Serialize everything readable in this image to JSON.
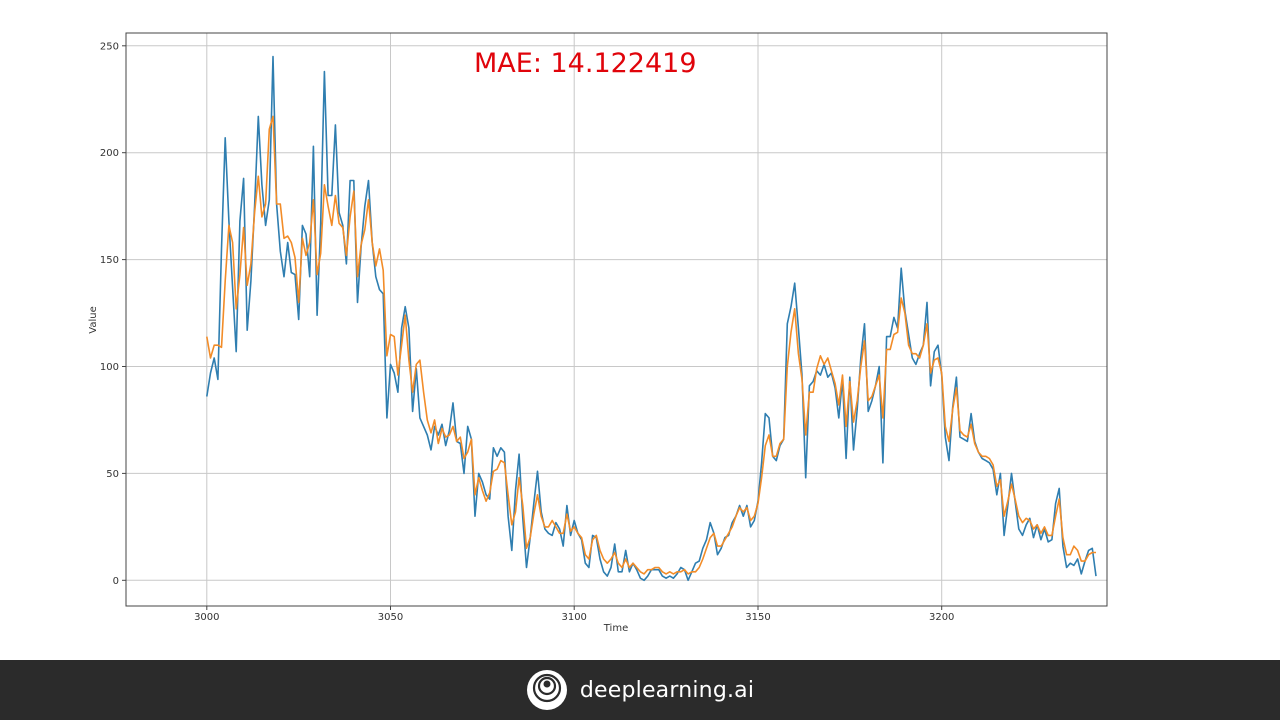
{
  "chart_data": {
    "type": "line",
    "title": "",
    "annotation": "MAE: 14.122419",
    "xlabel": "Time",
    "ylabel": "Value",
    "xlim": [
      2978,
      3245
    ],
    "ylim": [
      -12,
      256
    ],
    "xticks": [
      3000,
      3050,
      3100,
      3150,
      3200
    ],
    "yticks": [
      0,
      50,
      100,
      150,
      200,
      250
    ],
    "grid": true,
    "x_start": 3000,
    "x_step": 1,
    "series": [
      {
        "color": "#2f7eb0",
        "values": [
          86,
          97,
          104,
          94,
          155,
          207,
          168,
          137,
          107,
          168,
          188,
          117,
          140,
          175,
          217,
          185,
          166,
          178,
          245,
          176,
          154,
          142,
          158,
          144,
          143,
          122,
          166,
          162,
          142,
          203,
          124,
          167,
          238,
          180,
          180,
          213,
          172,
          166,
          148,
          187,
          187,
          130,
          156,
          175,
          187,
          158,
          142,
          136,
          134,
          76,
          101,
          97,
          88,
          118,
          128,
          118,
          79,
          99,
          76,
          72,
          68,
          61,
          72,
          68,
          73,
          63,
          70,
          83,
          65,
          64,
          50,
          72,
          66,
          30,
          50,
          46,
          40,
          38,
          62,
          58,
          62,
          60,
          30,
          14,
          42,
          59,
          29,
          6,
          20,
          36,
          51,
          32,
          24,
          22,
          21,
          27,
          24,
          16,
          35,
          21,
          28,
          22,
          19,
          8,
          6,
          21,
          20,
          10,
          4,
          2,
          6,
          17,
          4,
          4,
          14,
          4,
          8,
          5,
          1,
          0,
          2,
          5,
          5,
          5,
          2,
          1,
          2,
          1,
          3,
          6,
          5,
          0,
          4,
          8,
          9,
          15,
          19,
          27,
          22,
          12,
          15,
          20,
          21,
          27,
          30,
          35,
          30,
          35,
          25,
          28,
          37,
          55,
          78,
          76,
          58,
          56,
          63,
          66,
          120,
          128,
          139,
          118,
          96,
          48,
          91,
          93,
          98,
          96,
          101,
          95,
          97,
          90,
          76,
          94,
          57,
          95,
          61,
          80,
          104,
          120,
          79,
          84,
          91,
          100,
          55,
          114,
          114,
          123,
          118,
          146,
          126,
          115,
          104,
          101,
          106,
          110,
          130,
          91,
          107,
          110,
          96,
          67,
          56,
          81,
          95,
          67,
          66,
          65,
          78,
          65,
          60,
          57,
          56,
          55,
          52,
          40,
          50,
          21,
          35,
          50,
          37,
          24,
          21,
          26,
          29,
          20,
          26,
          19,
          24,
          18,
          19,
          36,
          43,
          16,
          6,
          8,
          7,
          10,
          3,
          9,
          14,
          15,
          2
        ]
      },
      {
        "color": "#f28c28",
        "values": [
          114,
          104,
          110,
          110,
          109,
          140,
          166,
          158,
          127,
          143,
          165,
          138,
          148,
          172,
          189,
          170,
          176,
          211,
          217,
          176,
          176,
          160,
          161,
          158,
          151,
          130,
          160,
          152,
          158,
          178,
          143,
          153,
          185,
          175,
          166,
          180,
          167,
          165,
          152,
          170,
          182,
          142,
          157,
          164,
          178,
          158,
          147,
          155,
          145,
          105,
          115,
          114,
          96,
          110,
          124,
          103,
          88,
          101,
          103,
          88,
          75,
          69,
          75,
          64,
          71,
          67,
          68,
          72,
          65,
          67,
          57,
          60,
          66,
          40,
          48,
          42,
          37,
          41,
          51,
          52,
          56,
          55,
          40,
          26,
          32,
          48,
          35,
          15,
          20,
          31,
          40,
          30,
          25,
          25,
          28,
          25,
          22,
          22,
          31,
          23,
          25,
          22,
          20,
          12,
          10,
          19,
          21,
          14,
          10,
          8,
          10,
          13,
          8,
          6,
          10,
          6,
          8,
          6,
          4,
          3,
          5,
          5,
          6,
          6,
          4,
          3,
          4,
          3,
          4,
          4,
          5,
          3,
          4,
          4,
          6,
          10,
          15,
          20,
          22,
          16,
          16,
          19,
          22,
          25,
          30,
          34,
          32,
          34,
          28,
          30,
          36,
          48,
          63,
          68,
          58,
          58,
          64,
          66,
          100,
          116,
          127,
          106,
          94,
          68,
          88,
          88,
          99,
          105,
          101,
          104,
          98,
          92,
          82,
          96,
          72,
          93,
          74,
          84,
          100,
          112,
          84,
          86,
          91,
          96,
          76,
          108,
          108,
          115,
          116,
          132,
          125,
          110,
          106,
          106,
          104,
          110,
          120,
          97,
          103,
          104,
          97,
          72,
          65,
          80,
          90,
          70,
          68,
          67,
          73,
          64,
          60,
          58,
          58,
          57,
          54,
          44,
          47,
          30,
          37,
          45,
          38,
          30,
          27,
          29,
          28,
          24,
          26,
          22,
          25,
          21,
          21,
          30,
          38,
          20,
          12,
          12,
          16,
          14,
          9,
          9,
          12,
          13,
          13
        ]
      }
    ]
  },
  "footer": {
    "brand": "deeplearning.ai",
    "logo_icon": "deeplearning-ai-logo-icon"
  }
}
